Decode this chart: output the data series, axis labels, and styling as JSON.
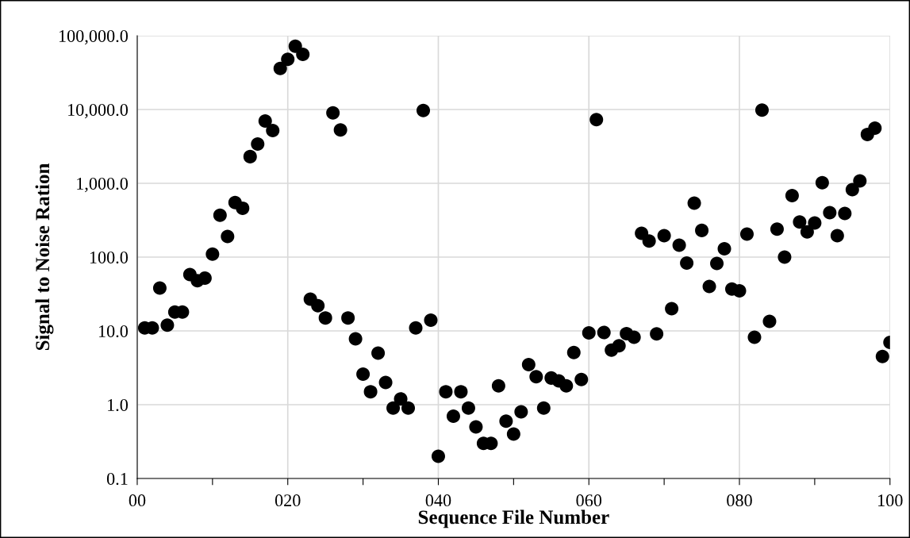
{
  "chart_data": {
    "type": "scatter",
    "xlabel": "Sequence File Number",
    "ylabel": "Signal to Noise Ration",
    "log": "y",
    "grid": true,
    "marker": "circle",
    "x": [
      1,
      2,
      3,
      4,
      5,
      6,
      7,
      8,
      9,
      10,
      11,
      12,
      13,
      14,
      15,
      16,
      17,
      18,
      19,
      20,
      21,
      22,
      23,
      24,
      25,
      26,
      27,
      28,
      29,
      30,
      31,
      32,
      33,
      34,
      35,
      36,
      37,
      38,
      39,
      40,
      41,
      42,
      43,
      44,
      45,
      46,
      47,
      48,
      49,
      50,
      51,
      52,
      53,
      54,
      55,
      56,
      57,
      58,
      59,
      60,
      61,
      62,
      63,
      64,
      65,
      66,
      67,
      68,
      69,
      70,
      71,
      72,
      73,
      74,
      75,
      76,
      77,
      78,
      79,
      80,
      81,
      82,
      83,
      84,
      85,
      86,
      87,
      88,
      89,
      90,
      91,
      92,
      93,
      94,
      95,
      96,
      97,
      98,
      99,
      100
    ],
    "series": [
      {
        "color": "#000000",
        "values": [
          11,
          11,
          38,
          12,
          18,
          18,
          58,
          48,
          52,
          110,
          370,
          190,
          550,
          460,
          2300,
          3400,
          7000,
          5200,
          36000,
          48000,
          72000,
          56000,
          27,
          22,
          15,
          9000,
          5300,
          15,
          7.8,
          2.6,
          1.5,
          5.0,
          2.0,
          0.9,
          1.2,
          0.9,
          11,
          9700,
          14,
          0.2,
          1.5,
          0.7,
          1.5,
          0.9,
          0.5,
          0.3,
          0.3,
          1.8,
          0.6,
          0.4,
          0.8,
          3.5,
          2.4,
          0.9,
          2.3,
          2.1,
          1.8,
          5.1,
          2.2,
          9.4,
          7300,
          9.5,
          5.5,
          6.3,
          9.2,
          8.2,
          210,
          165,
          9.1,
          195,
          20,
          145,
          83,
          540,
          230,
          40,
          82,
          130,
          37,
          35,
          205,
          8.2,
          9800,
          13.5,
          240,
          100,
          680,
          300,
          220,
          290,
          1020,
          400,
          195,
          390,
          820,
          1080,
          4600,
          5600,
          4.5,
          7.0
        ]
      }
    ],
    "xlim": [
      0,
      100
    ],
    "xticks": [
      {
        "value": 0,
        "label": "00"
      },
      {
        "value": 10,
        "label": null
      },
      {
        "value": 20,
        "label": "020"
      },
      {
        "value": 30,
        "label": null
      },
      {
        "value": 40,
        "label": "040"
      },
      {
        "value": 50,
        "label": null
      },
      {
        "value": 60,
        "label": "060"
      },
      {
        "value": 70,
        "label": null
      },
      {
        "value": 80,
        "label": "080"
      },
      {
        "value": 90,
        "label": null
      },
      {
        "value": 100,
        "label": "100"
      }
    ],
    "ylim": [
      0.1,
      100000
    ],
    "yticks": [
      {
        "value": 0.1,
        "label": "0.1"
      },
      {
        "value": 1,
        "label": "1.0"
      },
      {
        "value": 10,
        "label": "10.0"
      },
      {
        "value": 100,
        "label": "100.0"
      },
      {
        "value": 1000,
        "label": "1,000.0"
      },
      {
        "value": 10000,
        "label": "10,000.0"
      },
      {
        "value": 100000,
        "label": "100,000.0"
      }
    ]
  }
}
